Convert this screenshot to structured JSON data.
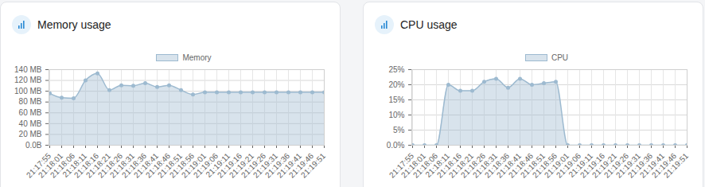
{
  "chart_data": [
    {
      "type": "area",
      "title": "Memory usage",
      "legend": "top",
      "grid": true,
      "marker": "circle",
      "categories": [
        "21:17:55",
        "21:18:01",
        "21:18:06",
        "21:18:11",
        "21:18:16",
        "21:18:21",
        "21:18:26",
        "21:18:31",
        "21:18:36",
        "21:18:41",
        "21:18:46",
        "21:18:51",
        "21:18:56",
        "21:19:01",
        "21:19:06",
        "21:19:11",
        "21:19:16",
        "21:19:21",
        "21:19:26",
        "21:19:31",
        "21:19:36",
        "21:19:41",
        "21:19:46",
        "21:19:51"
      ],
      "series": [
        {
          "name": "Memory",
          "color": "#9dbad0",
          "values": [
            96,
            88,
            87,
            120,
            133,
            102,
            111,
            110,
            115,
            108,
            111,
            102,
            94,
            98,
            98,
            98,
            98,
            98,
            98,
            98,
            98,
            98,
            98,
            98
          ]
        }
      ],
      "ylim": [
        0,
        140
      ],
      "yticks": [
        {
          "value": 0,
          "label": "0.0B"
        },
        {
          "value": 20,
          "label": "20 MB"
        },
        {
          "value": 40,
          "label": "40 MB"
        },
        {
          "value": 60,
          "label": "60 MB"
        },
        {
          "value": 80,
          "label": "80 MB"
        },
        {
          "value": 100,
          "label": "100 MB"
        },
        {
          "value": 120,
          "label": "120 MB"
        },
        {
          "value": 140,
          "label": "140 MB"
        }
      ]
    },
    {
      "type": "area",
      "title": "CPU usage",
      "legend": "top",
      "grid": true,
      "marker": "circle",
      "categories": [
        "21:17:55",
        "21:18:01",
        "21:18:06",
        "21:18:11",
        "21:18:16",
        "21:18:21",
        "21:18:26",
        "21:18:31",
        "21:18:36",
        "21:18:41",
        "21:18:46",
        "21:18:51",
        "21:18:56",
        "21:19:01",
        "21:19:06",
        "21:19:11",
        "21:19:16",
        "21:19:21",
        "21:19:26",
        "21:19:31",
        "21:19:36",
        "21:19:41",
        "21:19:46",
        "21:19:51"
      ],
      "series": [
        {
          "name": "CPU",
          "color": "#9dbad0",
          "values": [
            0,
            0,
            0,
            20,
            18,
            18,
            21,
            22,
            19,
            22,
            20,
            20.5,
            21,
            0,
            0,
            0,
            0,
            0,
            0,
            0,
            0,
            0,
            0,
            0
          ]
        }
      ],
      "ylim": [
        0,
        25
      ],
      "yticks": [
        {
          "value": 0,
          "label": "0.0%"
        },
        {
          "value": 5,
          "label": "5%"
        },
        {
          "value": 10,
          "label": "10%"
        },
        {
          "value": 15,
          "label": "15%"
        },
        {
          "value": 20,
          "label": "20%"
        },
        {
          "value": 25,
          "label": "25%"
        }
      ]
    }
  ]
}
